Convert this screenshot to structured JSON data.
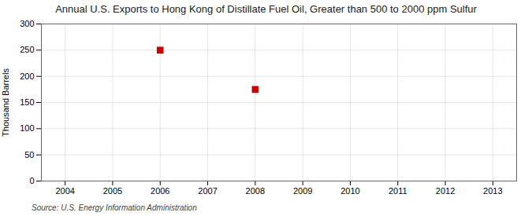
{
  "chart_data": {
    "type": "scatter",
    "title": "Annual U.S. Exports to Hong Kong of Distillate Fuel Oil, Greater than 500 to 2000 ppm Sulfur",
    "ylabel": "Thousand Barrels",
    "source": "Source: U.S. Energy Information Administration",
    "x": [
      2006,
      2008
    ],
    "values": [
      250,
      175
    ],
    "color": "#cc0000",
    "marker": "square",
    "xlim": [
      2003.5,
      2013.5
    ],
    "ylim": [
      0,
      300
    ],
    "xticks": [
      2004,
      2005,
      2006,
      2007,
      2008,
      2009,
      2010,
      2011,
      2012,
      2013
    ],
    "yticks": [
      0,
      50,
      100,
      150,
      200,
      250,
      300
    ],
    "grid": true
  }
}
